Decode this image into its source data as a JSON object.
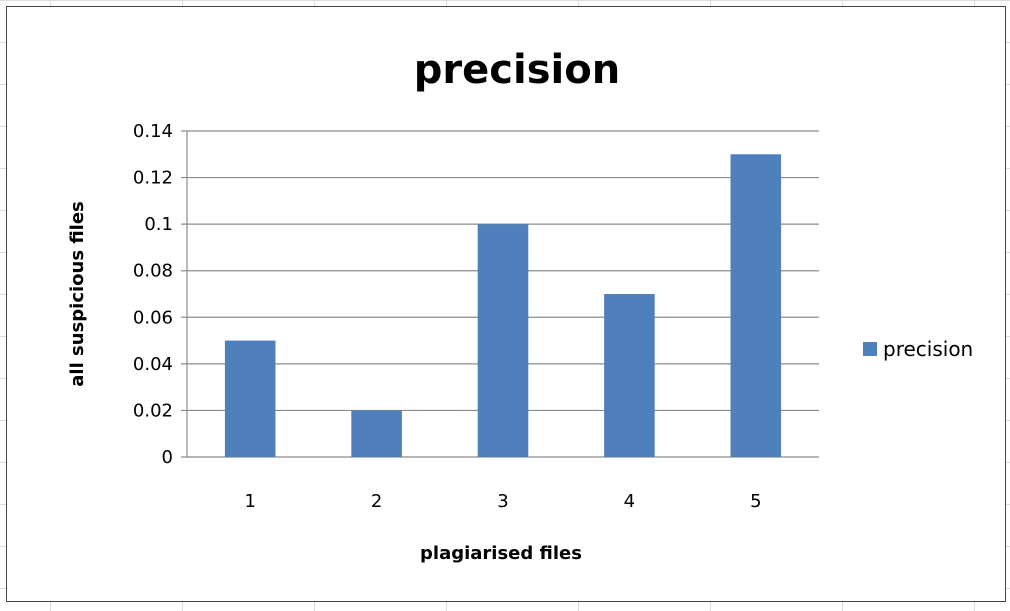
{
  "chart_data": {
    "type": "bar",
    "title": "precision",
    "xlabel": "plagiarised files",
    "ylabel": "all suspicious files",
    "categories": [
      "1",
      "2",
      "3",
      "4",
      "5"
    ],
    "series": [
      {
        "name": "precision",
        "values": [
          0.05,
          0.02,
          0.1,
          0.07,
          0.13
        ]
      }
    ],
    "ylim": [
      0,
      0.14
    ],
    "yticks": [
      "0",
      "0.02",
      "0.04",
      "0.06",
      "0.08",
      "0.1",
      "0.12",
      "0.14"
    ],
    "grid": true,
    "legend_position": "right",
    "colors": {
      "bar": "#4f7fbc",
      "grid": "#8c8c8c",
      "axis": "#8c8c8c"
    }
  }
}
